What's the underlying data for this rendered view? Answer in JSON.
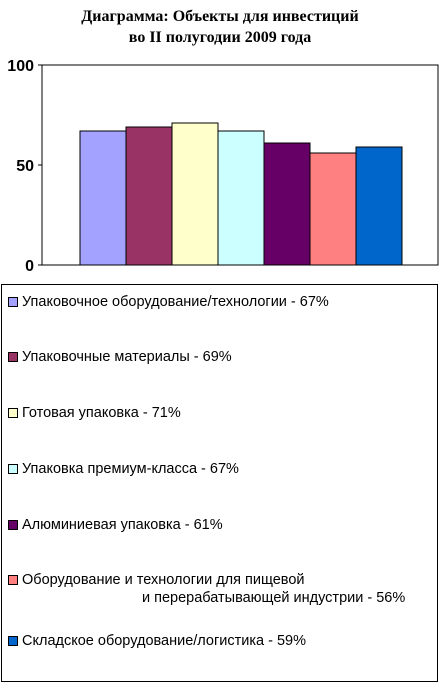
{
  "chart_data": {
    "type": "bar",
    "title_lines": [
      "Диаграмма:  Объекты для инвестиций",
      "во II полугодии 2009 года"
    ],
    "ylim": [
      0,
      100
    ],
    "yticks": [
      100,
      50,
      0
    ],
    "grid": false,
    "legend_position": "bottom",
    "series": [
      {
        "name": "Упаковочное оборудование/технологии  - 67%",
        "value": 67,
        "color": "#a3a3ff"
      },
      {
        "name": "Упаковочные материалы - 69%",
        "value": 69,
        "color": "#993366"
      },
      {
        "name": "Готовая упаковка - 71%",
        "value": 71,
        "color": "#ffffcc"
      },
      {
        "name": "Упаковка премиум-класса - 67%",
        "value": 67,
        "color": "#ccffff"
      },
      {
        "name": "Алюминиевая упаковка - 61%",
        "value": 61,
        "color": "#660066"
      },
      {
        "name": "Оборудование и технологии для пищевой|и перерабатывающей индустрии - 56%",
        "value": 56,
        "color": "#ff8080"
      },
      {
        "name": "Складское оборудование/логистика -  59%",
        "value": 59,
        "color": "#0066cc"
      }
    ]
  }
}
